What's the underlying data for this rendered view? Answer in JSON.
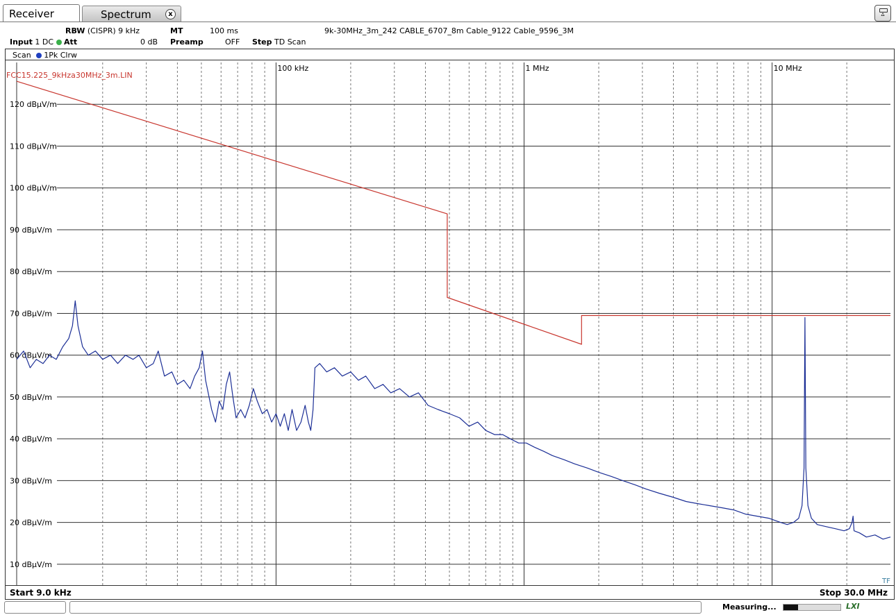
{
  "tabs": {
    "receiver": "Receiver",
    "spectrum": "Spectrum",
    "close_glyph": "x"
  },
  "info": {
    "rbw_key": "RBW",
    "rbw_val": "(CISPR) 9 kHz",
    "mt_key": "MT",
    "mt_val": "100 ms",
    "transducer": "9k-30MHz_3m_242 CABLE_6707_8m Cable_9122 Cable_9596_3M",
    "input_key": "Input",
    "input_val": "1 DC",
    "att_key": "Att",
    "att_val": "0 dB",
    "preamp_key": "Preamp",
    "preamp_val": "OFF",
    "step_key": "Step",
    "step_val": "TD Scan"
  },
  "panel": {
    "scan_label": "Scan",
    "trace_label": "1Pk Clrw"
  },
  "footer": {
    "start": "Start 9.0 kHz",
    "stop": "Stop 30.0 MHz",
    "tf": "TF"
  },
  "status": {
    "text": "Measuring...",
    "progress": 0.25,
    "lxi": "LXI"
  },
  "colors": {
    "limit": "#c8362e",
    "trace": "#1c2f96",
    "grid": "#333333"
  },
  "chart_data": {
    "type": "line",
    "x_scale": "log",
    "x_range": [
      9000,
      30000000
    ],
    "y_range": [
      5,
      130
    ],
    "y_unit": "dBµV/m",
    "x_ticks": [
      {
        "value": 100000,
        "label": "100 kHz"
      },
      {
        "value": 1000000,
        "label": "1 MHz"
      },
      {
        "value": 10000000,
        "label": "10 MHz"
      }
    ],
    "y_ticks": [
      {
        "value": 120,
        "label": "120 dBµV/m"
      },
      {
        "value": 110,
        "label": "110 dBµV/m"
      },
      {
        "value": 100,
        "label": "100 dBµV/m"
      },
      {
        "value": 90,
        "label": "90 dBµV/m"
      },
      {
        "value": 80,
        "label": "80 dBµV/m"
      },
      {
        "value": 70,
        "label": "70 dBµV/m"
      },
      {
        "value": 60,
        "label": "60 dBµV/m"
      },
      {
        "value": 50,
        "label": "50 dBµV/m"
      },
      {
        "value": 40,
        "label": "40 dBµV/m"
      },
      {
        "value": 30,
        "label": "30 dBµV/m"
      },
      {
        "value": 20,
        "label": "20 dBµV/m"
      },
      {
        "value": 10,
        "label": "10 dBµV/m"
      }
    ],
    "grid": true,
    "series": [
      {
        "name": "FCC15.225_9kHza30MHz_3m.LIN",
        "role": "limit",
        "points": [
          [
            9000,
            125.5
          ],
          [
            490000,
            93.8
          ],
          [
            490000,
            73.8
          ],
          [
            1705000,
            62.6
          ],
          [
            1705000,
            69.5
          ],
          [
            30000000,
            69.5
          ]
        ]
      },
      {
        "role": "trace",
        "points": [
          [
            9000,
            59
          ],
          [
            9600,
            61
          ],
          [
            10200,
            57
          ],
          [
            10800,
            59
          ],
          [
            11500,
            58
          ],
          [
            12200,
            60
          ],
          [
            13000,
            59
          ],
          [
            13800,
            62
          ],
          [
            14600,
            64
          ],
          [
            15100,
            67
          ],
          [
            15500,
            73
          ],
          [
            15900,
            67
          ],
          [
            16600,
            62
          ],
          [
            17500,
            60
          ],
          [
            18700,
            61
          ],
          [
            20000,
            59
          ],
          [
            21500,
            60
          ],
          [
            23000,
            58
          ],
          [
            24700,
            60
          ],
          [
            26500,
            59
          ],
          [
            28000,
            60
          ],
          [
            30000,
            57
          ],
          [
            32000,
            58
          ],
          [
            33500,
            61
          ],
          [
            35500,
            55
          ],
          [
            38000,
            56
          ],
          [
            40000,
            53
          ],
          [
            42500,
            54
          ],
          [
            45000,
            52
          ],
          [
            47000,
            55
          ],
          [
            49000,
            57
          ],
          [
            50500,
            61
          ],
          [
            52000,
            54
          ],
          [
            55000,
            47
          ],
          [
            57000,
            44
          ],
          [
            59000,
            49
          ],
          [
            61000,
            47
          ],
          [
            63000,
            53
          ],
          [
            65000,
            56
          ],
          [
            67000,
            50
          ],
          [
            69000,
            45
          ],
          [
            72000,
            47
          ],
          [
            75000,
            45
          ],
          [
            78000,
            48
          ],
          [
            81000,
            52
          ],
          [
            84000,
            49
          ],
          [
            88000,
            46
          ],
          [
            92000,
            47
          ],
          [
            96000,
            44
          ],
          [
            100000,
            46
          ],
          [
            104000,
            43
          ],
          [
            108000,
            46
          ],
          [
            112000,
            42
          ],
          [
            116000,
            47
          ],
          [
            121000,
            42
          ],
          [
            126000,
            44
          ],
          [
            131000,
            48
          ],
          [
            135000,
            44
          ],
          [
            138000,
            42
          ],
          [
            141000,
            47
          ],
          [
            143500,
            57
          ],
          [
            150000,
            58
          ],
          [
            160000,
            56
          ],
          [
            172000,
            57
          ],
          [
            185000,
            55
          ],
          [
            200000,
            56
          ],
          [
            215000,
            54
          ],
          [
            230000,
            55
          ],
          [
            250000,
            52
          ],
          [
            270000,
            53
          ],
          [
            290000,
            51
          ],
          [
            315000,
            52
          ],
          [
            345000,
            50
          ],
          [
            375000,
            51
          ],
          [
            410000,
            48
          ],
          [
            450000,
            47
          ],
          [
            500000,
            46
          ],
          [
            550000,
            45
          ],
          [
            600000,
            43
          ],
          [
            650000,
            44
          ],
          [
            700000,
            42
          ],
          [
            760000,
            41
          ],
          [
            820000,
            41
          ],
          [
            880000,
            40
          ],
          [
            950000,
            39
          ],
          [
            1020000,
            39
          ],
          [
            1100000,
            38
          ],
          [
            1200000,
            37
          ],
          [
            1300000,
            36
          ],
          [
            1450000,
            35
          ],
          [
            1600000,
            34
          ],
          [
            1800000,
            33
          ],
          [
            2000000,
            32
          ],
          [
            2250000,
            31
          ],
          [
            2500000,
            30
          ],
          [
            2800000,
            29
          ],
          [
            3100000,
            28
          ],
          [
            3500000,
            27
          ],
          [
            4000000,
            26
          ],
          [
            4500000,
            25
          ],
          [
            5000000,
            24.5
          ],
          [
            5600000,
            24
          ],
          [
            6300000,
            23.5
          ],
          [
            7000000,
            23
          ],
          [
            7800000,
            22
          ],
          [
            8700000,
            21.5
          ],
          [
            9700000,
            21
          ],
          [
            10800000,
            20
          ],
          [
            11500000,
            19.5
          ],
          [
            12200000,
            20
          ],
          [
            12800000,
            21
          ],
          [
            13200000,
            24
          ],
          [
            13450000,
            33
          ],
          [
            13560000,
            69
          ],
          [
            13680000,
            33
          ],
          [
            13950000,
            24
          ],
          [
            14400000,
            21
          ],
          [
            15200000,
            19.5
          ],
          [
            16500000,
            19
          ],
          [
            18000000,
            18.5
          ],
          [
            19500000,
            18
          ],
          [
            20500000,
            18.5
          ],
          [
            21000000,
            20
          ],
          [
            21200000,
            21.5
          ],
          [
            21400000,
            18
          ],
          [
            22500000,
            17.5
          ],
          [
            24000000,
            16.5
          ],
          [
            26000000,
            17
          ],
          [
            28000000,
            16
          ],
          [
            30000000,
            16.5
          ]
        ]
      }
    ]
  }
}
